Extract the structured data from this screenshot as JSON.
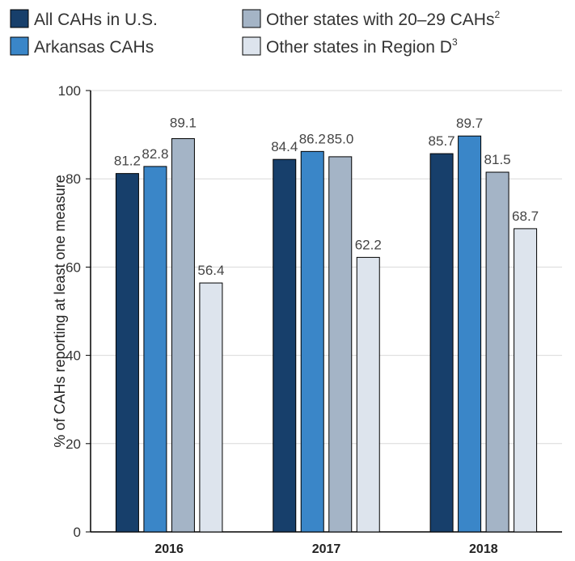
{
  "chart_data": {
    "type": "bar",
    "title": "",
    "xlabel": "",
    "ylabel": "% of CAHs reporting at least one measure",
    "ylim": [
      0,
      100
    ],
    "yticks": [
      0,
      20,
      40,
      60,
      80,
      100
    ],
    "grid": true,
    "legend_position": "top",
    "categories": [
      "2016",
      "2017",
      "2018"
    ],
    "series": [
      {
        "name": "All CAHs in U.S.",
        "color": "#173f6b",
        "values": [
          81.2,
          84.4,
          85.7
        ]
      },
      {
        "name": "Arkansas CAHs",
        "color": "#3a86c8",
        "values": [
          82.8,
          86.2,
          89.7
        ]
      },
      {
        "name": "Other states with 20–29 CAHs",
        "sup": "2",
        "color": "#a4b4c6",
        "values": [
          89.1,
          85.0,
          81.5
        ]
      },
      {
        "name": "Other states in Region D",
        "sup": "3",
        "color": "#dde4ed",
        "values": [
          56.4,
          62.2,
          68.7
        ]
      }
    ]
  }
}
